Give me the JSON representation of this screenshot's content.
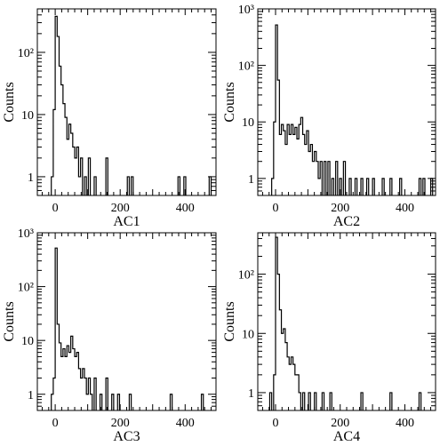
{
  "chart_data": [
    {
      "type": "histogram",
      "xlabel": "AC1",
      "ylabel": "Counts",
      "xlim": [
        -55,
        495
      ],
      "ylim": [
        0.5,
        500
      ],
      "log_y": true,
      "x_ticks": [
        0,
        200,
        400
      ],
      "x_tick_labels": [
        "0",
        "200",
        "400"
      ],
      "y_ticks": [
        1,
        10,
        100
      ],
      "y_tick_labels": [
        "1",
        "10",
        "10²"
      ],
      "bin_width": 6,
      "bins": [
        {
          "x": -12,
          "count": 1
        },
        {
          "x": -6,
          "count": 12
        },
        {
          "x": 0,
          "count": 380
        },
        {
          "x": 6,
          "count": 180
        },
        {
          "x": 12,
          "count": 60
        },
        {
          "x": 18,
          "count": 30
        },
        {
          "x": 24,
          "count": 15
        },
        {
          "x": 30,
          "count": 9
        },
        {
          "x": 36,
          "count": 4
        },
        {
          "x": 42,
          "count": 7
        },
        {
          "x": 48,
          "count": 5
        },
        {
          "x": 54,
          "count": 3
        },
        {
          "x": 60,
          "count": 2
        },
        {
          "x": 66,
          "count": 3
        },
        {
          "x": 72,
          "count": 1
        },
        {
          "x": 78,
          "count": 2
        },
        {
          "x": 90,
          "count": 1
        },
        {
          "x": 102,
          "count": 2
        },
        {
          "x": 120,
          "count": 1
        },
        {
          "x": 156,
          "count": 2
        },
        {
          "x": 222,
          "count": 1
        },
        {
          "x": 234,
          "count": 1
        },
        {
          "x": 378,
          "count": 1
        },
        {
          "x": 396,
          "count": 1
        },
        {
          "x": 474,
          "count": 1
        }
      ]
    },
    {
      "type": "histogram",
      "xlabel": "AC2",
      "ylabel": "Counts",
      "xlim": [
        -55,
        495
      ],
      "ylim": [
        0.5,
        1000
      ],
      "log_y": true,
      "x_ticks": [
        0,
        200,
        400
      ],
      "x_tick_labels": [
        "0",
        "200",
        "400"
      ],
      "y_ticks": [
        1,
        10,
        100,
        1000
      ],
      "y_tick_labels": [
        "1",
        "10",
        "10²",
        "10³"
      ],
      "bin_width": 6,
      "bins": [
        {
          "x": -12,
          "count": 1
        },
        {
          "x": -6,
          "count": 10
        },
        {
          "x": 0,
          "count": 520
        },
        {
          "x": 6,
          "count": 55
        },
        {
          "x": 12,
          "count": 6
        },
        {
          "x": 18,
          "count": 9
        },
        {
          "x": 24,
          "count": 7
        },
        {
          "x": 30,
          "count": 4
        },
        {
          "x": 36,
          "count": 9
        },
        {
          "x": 42,
          "count": 6
        },
        {
          "x": 48,
          "count": 9
        },
        {
          "x": 54,
          "count": 6
        },
        {
          "x": 60,
          "count": 8
        },
        {
          "x": 66,
          "count": 5
        },
        {
          "x": 72,
          "count": 9
        },
        {
          "x": 78,
          "count": 12
        },
        {
          "x": 84,
          "count": 6
        },
        {
          "x": 90,
          "count": 4
        },
        {
          "x": 96,
          "count": 7
        },
        {
          "x": 102,
          "count": 3
        },
        {
          "x": 108,
          "count": 4
        },
        {
          "x": 114,
          "count": 2
        },
        {
          "x": 120,
          "count": 3
        },
        {
          "x": 126,
          "count": 2
        },
        {
          "x": 132,
          "count": 1
        },
        {
          "x": 138,
          "count": 2
        },
        {
          "x": 150,
          "count": 2
        },
        {
          "x": 162,
          "count": 2
        },
        {
          "x": 174,
          "count": 1
        },
        {
          "x": 186,
          "count": 2
        },
        {
          "x": 198,
          "count": 1
        },
        {
          "x": 210,
          "count": 2
        },
        {
          "x": 228,
          "count": 1
        },
        {
          "x": 246,
          "count": 1
        },
        {
          "x": 264,
          "count": 1
        },
        {
          "x": 282,
          "count": 1
        },
        {
          "x": 300,
          "count": 1
        },
        {
          "x": 330,
          "count": 1
        },
        {
          "x": 354,
          "count": 1
        },
        {
          "x": 384,
          "count": 1
        },
        {
          "x": 444,
          "count": 1
        },
        {
          "x": 456,
          "count": 1
        },
        {
          "x": 480,
          "count": 1
        }
      ]
    },
    {
      "type": "histogram",
      "xlabel": "AC3",
      "ylabel": "Counts",
      "xlim": [
        -55,
        495
      ],
      "ylim": [
        0.5,
        1000
      ],
      "log_y": true,
      "x_ticks": [
        0,
        200,
        400
      ],
      "x_tick_labels": [
        "0",
        "200",
        "400"
      ],
      "y_ticks": [
        1,
        10,
        100,
        1000
      ],
      "y_tick_labels": [
        "1",
        "10",
        "10²",
        "10³"
      ],
      "bin_width": 6,
      "bins": [
        {
          "x": -12,
          "count": 1
        },
        {
          "x": -6,
          "count": 2
        },
        {
          "x": 0,
          "count": 520
        },
        {
          "x": 6,
          "count": 20
        },
        {
          "x": 12,
          "count": 9
        },
        {
          "x": 18,
          "count": 5
        },
        {
          "x": 24,
          "count": 7
        },
        {
          "x": 30,
          "count": 5
        },
        {
          "x": 36,
          "count": 8
        },
        {
          "x": 42,
          "count": 6
        },
        {
          "x": 48,
          "count": 12
        },
        {
          "x": 54,
          "count": 7
        },
        {
          "x": 60,
          "count": 5
        },
        {
          "x": 66,
          "count": 6
        },
        {
          "x": 72,
          "count": 3
        },
        {
          "x": 78,
          "count": 2
        },
        {
          "x": 84,
          "count": 3
        },
        {
          "x": 90,
          "count": 2
        },
        {
          "x": 96,
          "count": 1
        },
        {
          "x": 102,
          "count": 2
        },
        {
          "x": 108,
          "count": 1
        },
        {
          "x": 120,
          "count": 2
        },
        {
          "x": 138,
          "count": 1
        },
        {
          "x": 156,
          "count": 2
        },
        {
          "x": 174,
          "count": 1
        },
        {
          "x": 192,
          "count": 1
        },
        {
          "x": 228,
          "count": 1
        },
        {
          "x": 354,
          "count": 1
        },
        {
          "x": 450,
          "count": 1
        }
      ]
    },
    {
      "type": "histogram",
      "xlabel": "AC4",
      "ylabel": "Counts",
      "xlim": [
        -55,
        495
      ],
      "ylim": [
        0.5,
        500
      ],
      "log_y": true,
      "x_ticks": [
        0,
        200,
        400
      ],
      "x_tick_labels": [
        "0",
        "200",
        "400"
      ],
      "y_ticks": [
        1,
        10,
        100
      ],
      "y_tick_labels": [
        "1",
        "10",
        "10²"
      ],
      "bin_width": 6,
      "bins": [
        {
          "x": -18,
          "count": 1
        },
        {
          "x": -6,
          "count": 2
        },
        {
          "x": 0,
          "count": 420
        },
        {
          "x": 6,
          "count": 100
        },
        {
          "x": 12,
          "count": 25
        },
        {
          "x": 18,
          "count": 10
        },
        {
          "x": 24,
          "count": 12
        },
        {
          "x": 30,
          "count": 7
        },
        {
          "x": 36,
          "count": 4
        },
        {
          "x": 42,
          "count": 3
        },
        {
          "x": 48,
          "count": 4
        },
        {
          "x": 54,
          "count": 3
        },
        {
          "x": 60,
          "count": 2
        },
        {
          "x": 66,
          "count": 2
        },
        {
          "x": 72,
          "count": 1
        },
        {
          "x": 84,
          "count": 1
        },
        {
          "x": 102,
          "count": 1
        },
        {
          "x": 120,
          "count": 1
        },
        {
          "x": 144,
          "count": 1
        },
        {
          "x": 168,
          "count": 1
        },
        {
          "x": 264,
          "count": 1
        },
        {
          "x": 354,
          "count": 1
        },
        {
          "x": 444,
          "count": 1
        }
      ]
    }
  ]
}
